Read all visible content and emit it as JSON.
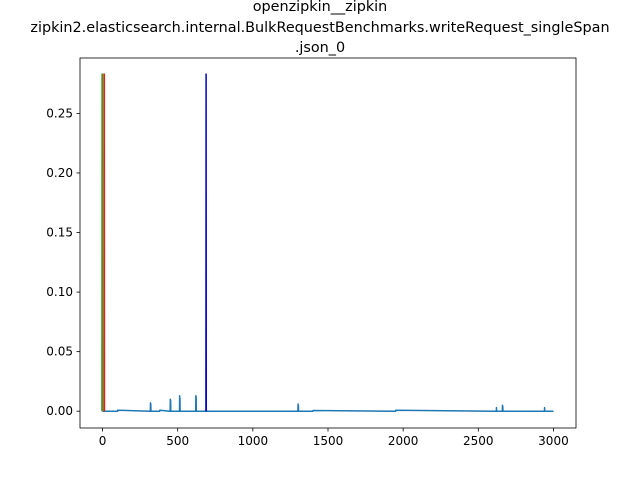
{
  "chart_data": {
    "type": "line",
    "title_lines": [
      "openzipkin__zipkin",
      "zipkin2.elasticsearch.internal.BulkRequestBenchmarks.writeRequest_singleSpan",
      ".json_0"
    ],
    "xlabel": "",
    "ylabel": "",
    "xlim": [
      -150,
      3150
    ],
    "ylim": [
      -0.0141,
      0.2965
    ],
    "x_ticks": [
      0,
      500,
      1000,
      1500,
      2000,
      2500,
      3000
    ],
    "x_tick_labels": [
      "0",
      "500",
      "1000",
      "1500",
      "2000",
      "2500",
      "3000"
    ],
    "y_ticks": [
      0.0,
      0.05,
      0.1,
      0.15,
      0.2,
      0.25
    ],
    "y_tick_labels": [
      "0.00",
      "0.05",
      "0.10",
      "0.15",
      "0.20",
      "0.25"
    ],
    "grid": false,
    "legend": "none",
    "series": [
      {
        "color": "#1f77b4",
        "x": [
          0,
          1,
          2,
          3,
          100,
          101,
          318,
          319,
          320,
          321,
          322,
          323,
          380,
          381,
          450,
          451,
          452,
          453,
          454,
          455,
          512,
          513,
          514,
          515,
          516,
          517,
          620,
          621,
          622,
          623,
          624,
          625,
          1300,
          1301,
          1302,
          1303,
          1304,
          1305,
          1400,
          1401,
          1950,
          1951,
          2620,
          2621,
          2622,
          2623,
          2660,
          2661,
          2662,
          2663,
          2664,
          2665,
          2940,
          2941,
          2942,
          2943,
          3000
        ],
        "y": [
          0.283,
          0.283,
          0.0,
          0.0,
          0.0,
          0.0008,
          0.0,
          0.007,
          0.0,
          0.006,
          0.0,
          0.0,
          0.0,
          0.0008,
          0.0,
          0.01,
          0.0,
          0.009,
          0.0,
          0.0,
          0.0,
          0.013,
          0.0,
          0.011,
          0.0,
          0.0,
          0.0,
          0.013,
          0.0,
          0.012,
          0.0,
          0.0,
          0.0,
          0.006,
          0.0,
          0.005,
          0.0,
          0.0,
          0.0,
          0.0006,
          0.0,
          0.0008,
          0.0,
          0.003,
          0.0,
          0.0,
          0.0,
          0.005,
          0.0,
          0.004,
          0.0,
          0.0,
          0.0,
          0.003,
          0.0,
          0.0,
          0.0
        ]
      },
      {
        "color": "#ff7f0e",
        "x": [
          6,
          7,
          8
        ],
        "y": [
          0.0,
          0.283,
          0.0
        ]
      },
      {
        "color": "#2ca02c",
        "x": [
          -4,
          -3,
          -2
        ],
        "y": [
          0.0,
          0.283,
          0.0
        ]
      },
      {
        "color": "#d62728",
        "x": [
          11,
          12,
          13
        ],
        "y": [
          0.0,
          0.283,
          0.0
        ]
      },
      {
        "color": "#0000cc",
        "x": [
          688,
          689,
          690
        ],
        "y": [
          0.0,
          0.283,
          0.0
        ]
      }
    ]
  }
}
